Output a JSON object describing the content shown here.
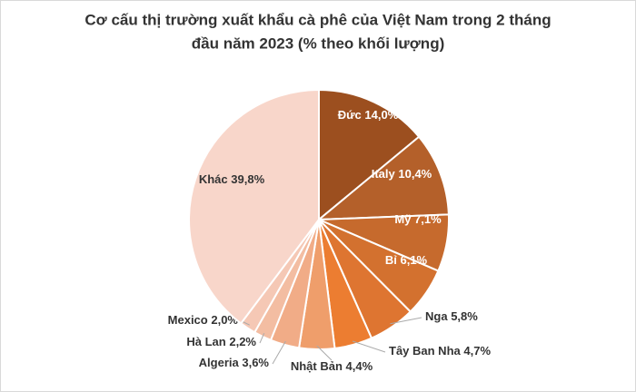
{
  "chart_data": {
    "type": "pie",
    "title": [
      "Cơ cấu thị trường xuất khẩu cà phê của Việt Nam trong 2 tháng",
      "đầu năm 2023 (% theo khối lượng)"
    ],
    "categories": [
      "Đức",
      "Italy",
      "Mỹ",
      "Bỉ",
      "Nga",
      "Tây Ban Nha",
      "Nhật Bản",
      "Algeria",
      "Hà Lan",
      "Mexico",
      "Khác"
    ],
    "values": [
      14.0,
      10.4,
      7.1,
      6.1,
      5.8,
      4.7,
      4.4,
      3.6,
      2.2,
      2.0,
      39.8
    ],
    "value_labels": [
      "14,0%",
      "10,4%",
      "7,1%",
      "6,1%",
      "5,8%",
      "4,7%",
      "4,4%",
      "3,6%",
      "2,2%",
      "2,0%",
      "39,8%"
    ],
    "colors": [
      "#9c4f1f",
      "#b4602a",
      "#c66a2d",
      "#d3712f",
      "#de7531",
      "#ec7d31",
      "#ef9e6b",
      "#f1ac87",
      "#f3bda2",
      "#f5c8b5",
      "#f8d6ca"
    ]
  }
}
